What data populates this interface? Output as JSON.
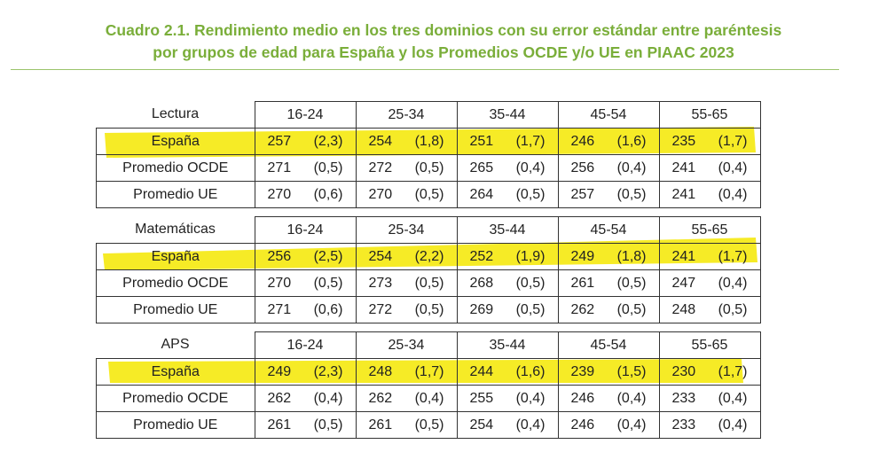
{
  "title": {
    "label": "Cuadro 2.1.",
    "line1": "Rendimiento medio en los tres dominios con su error estándar entre paréntesis",
    "line2": "por grupos de edad para España y los Promedios OCDE y/o UE en PIAAC 2023"
  },
  "highlight_color": "#f5e800",
  "title_color": "#7aae3a",
  "age_groups": [
    "16-24",
    "25-34",
    "35-44",
    "45-54",
    "55-65"
  ],
  "domains": [
    {
      "name": "Lectura",
      "rows": [
        {
          "label": "España",
          "cells": [
            [
              "257",
              "(2,3)"
            ],
            [
              "254",
              "(1,8)"
            ],
            [
              "251",
              "(1,7)"
            ],
            [
              "246",
              "(1,6)"
            ],
            [
              "235",
              "(1,7)"
            ]
          ]
        },
        {
          "label": "Promedio OCDE",
          "cells": [
            [
              "271",
              "(0,5)"
            ],
            [
              "272",
              "(0,5)"
            ],
            [
              "265",
              "(0,4)"
            ],
            [
              "256",
              "(0,4)"
            ],
            [
              "241",
              "(0,4)"
            ]
          ]
        },
        {
          "label": "Promedio UE",
          "cells": [
            [
              "270",
              "(0,6)"
            ],
            [
              "270",
              "(0,5)"
            ],
            [
              "264",
              "(0,5)"
            ],
            [
              "257",
              "(0,5)"
            ],
            [
              "241",
              "(0,4)"
            ]
          ]
        }
      ]
    },
    {
      "name": "Matemáticas",
      "rows": [
        {
          "label": "España",
          "cells": [
            [
              "256",
              "(2,5)"
            ],
            [
              "254",
              "(2,2)"
            ],
            [
              "252",
              "(1,9)"
            ],
            [
              "249",
              "(1,8)"
            ],
            [
              "241",
              "(1,7)"
            ]
          ]
        },
        {
          "label": "Promedio OCDE",
          "cells": [
            [
              "270",
              "(0,5)"
            ],
            [
              "273",
              "(0,5)"
            ],
            [
              "268",
              "(0,5)"
            ],
            [
              "261",
              "(0,5)"
            ],
            [
              "247",
              "(0,4)"
            ]
          ]
        },
        {
          "label": "Promedio UE",
          "cells": [
            [
              "271",
              "(0,6)"
            ],
            [
              "272",
              "(0,5)"
            ],
            [
              "269",
              "(0,5)"
            ],
            [
              "262",
              "(0,5)"
            ],
            [
              "248",
              "(0,5)"
            ]
          ]
        }
      ]
    },
    {
      "name": "APS",
      "rows": [
        {
          "label": "España",
          "cells": [
            [
              "249",
              "(2,3)"
            ],
            [
              "248",
              "(1,7)"
            ],
            [
              "244",
              "(1,6)"
            ],
            [
              "239",
              "(1,5)"
            ],
            [
              "230",
              "(1,7)"
            ]
          ]
        },
        {
          "label": "Promedio OCDE",
          "cells": [
            [
              "262",
              "(0,4)"
            ],
            [
              "262",
              "(0,4)"
            ],
            [
              "255",
              "(0,4)"
            ],
            [
              "246",
              "(0,4)"
            ],
            [
              "233",
              "(0,4)"
            ]
          ]
        },
        {
          "label": "Promedio UE",
          "cells": [
            [
              "261",
              "(0,5)"
            ],
            [
              "261",
              "(0,5)"
            ],
            [
              "254",
              "(0,4)"
            ],
            [
              "246",
              "(0,4)"
            ],
            [
              "233",
              "(0,4)"
            ]
          ]
        }
      ]
    }
  ]
}
